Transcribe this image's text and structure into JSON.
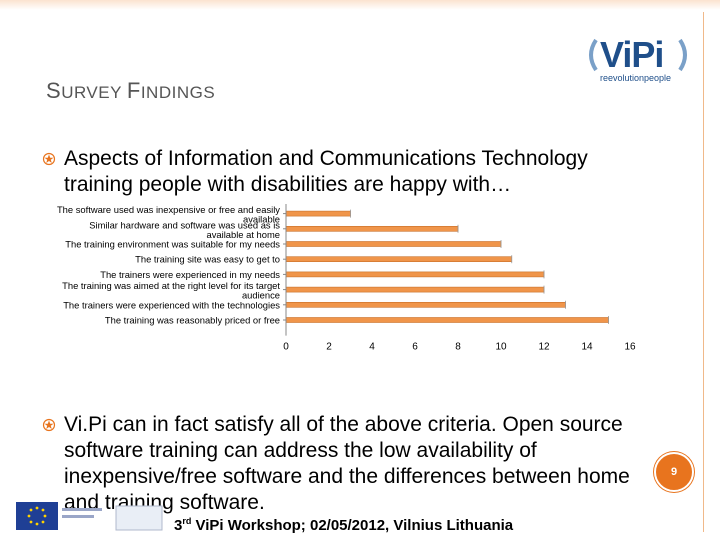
{
  "slide": {
    "title_first": "S",
    "title_rest1": "URVEY ",
    "title_first2": "F",
    "title_rest2": "INDINGS",
    "bullet1": "Aspects of Information and Communications Technology training people with disabilities are happy with…",
    "bullet2": "Vi.Pi can in fact satisfy all of the above criteria. Open source software training can address the low availability of inexpensive/free software and the differences between home and training software.",
    "footer_prefix": "3",
    "footer_sup": "rd",
    "footer_rest": " ViPi Workshop; 02/05/2012, Vilnius Lithuania",
    "page_number": "9"
  },
  "logo": {
    "name": "ViPi",
    "tagline": "reevolutionpeople"
  },
  "colors": {
    "bar": "#f0954a",
    "bar_edge": "#c8702a",
    "accent": "#e8741e",
    "logo": "#1f4f8a"
  },
  "chart_data": {
    "type": "bar",
    "orientation": "horizontal",
    "categories": [
      "The software used was inexpensive or free and easily available",
      "Similar hardware and software was used as is available at home",
      "The training environment was suitable for my needs",
      "The training site was easy to get to",
      "The trainers were experienced in my needs",
      "The training was aimed at the right level for its target audience",
      "The trainers were experienced with the technologies",
      "The training was reasonably priced or free"
    ],
    "category_lines": [
      [
        "The software used was inexpensive or free and easily",
        "available"
      ],
      [
        "Similar hardware and software was used as is",
        "available at home"
      ],
      [
        "The training environment was suitable for my needs"
      ],
      [
        "The training site was easy to get to"
      ],
      [
        "The trainers were experienced in my needs"
      ],
      [
        "The training was aimed at the right level for its target",
        "audience"
      ],
      [
        "The trainers were experienced with the technologies"
      ],
      [
        "The training was reasonably priced or free"
      ]
    ],
    "values": [
      3,
      8,
      10,
      10.5,
      12,
      12,
      13,
      15
    ],
    "xlim": [
      0,
      16
    ],
    "xticks": [
      0,
      2,
      4,
      6,
      8,
      10,
      12,
      14,
      16
    ],
    "grid": false,
    "title": "",
    "xlabel": "",
    "ylabel": ""
  }
}
